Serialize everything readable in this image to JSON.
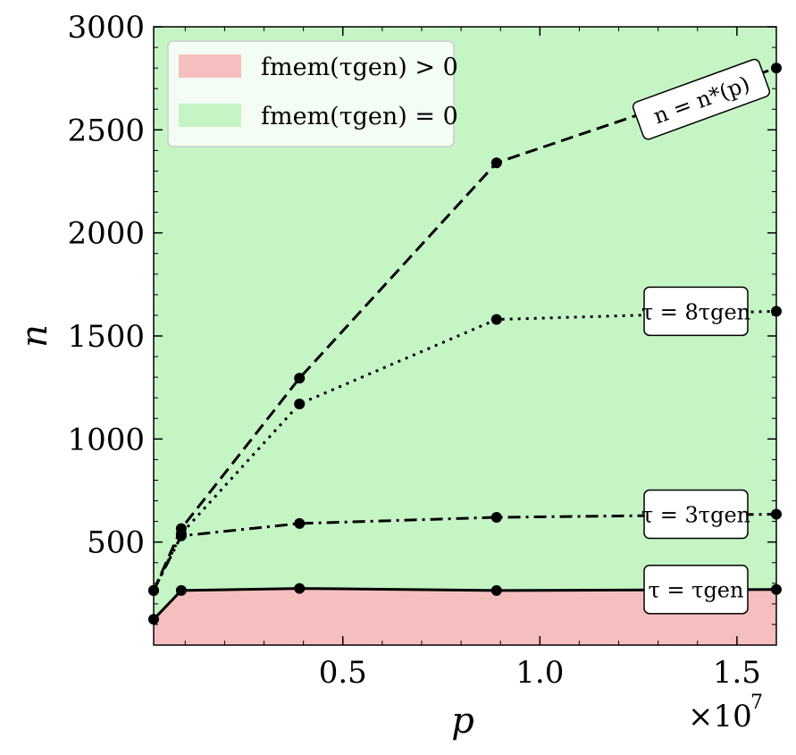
{
  "chart_data": {
    "type": "line",
    "xlabel": "p",
    "ylabel": "n",
    "x_multiplier": "×10",
    "x_multiplier_exp": "7",
    "xlim": [
      200000,
      16000000
    ],
    "ylim": [
      0,
      3000
    ],
    "xticks": [
      {
        "value": 5000000,
        "label": "0.5"
      },
      {
        "value": 10000000,
        "label": "1.0"
      },
      {
        "value": 15000000,
        "label": "1.5"
      }
    ],
    "yticks": [
      {
        "value": 500,
        "label": "500"
      },
      {
        "value": 1000,
        "label": "1000"
      },
      {
        "value": 1500,
        "label": "1500"
      },
      {
        "value": 2000,
        "label": "2000"
      },
      {
        "value": 2500,
        "label": "2500"
      },
      {
        "value": 3000,
        "label": "3000"
      }
    ],
    "x": [
      200000,
      900000,
      3900000,
      8900000,
      16000000
    ],
    "series": [
      {
        "name": "τ = τgen",
        "style": "solid",
        "values": [
          125,
          265,
          275,
          265,
          270
        ]
      },
      {
        "name": "τ = 3τgen",
        "style": "dashdot",
        "values": [
          265,
          530,
          590,
          620,
          635
        ]
      },
      {
        "name": "τ = 8τgen",
        "style": "dotted",
        "values": [
          265,
          540,
          1170,
          1580,
          1620
        ]
      },
      {
        "name": "n = n*(p)",
        "style": "dashed",
        "values": [
          265,
          565,
          1295,
          2340,
          2800
        ]
      }
    ],
    "curve_labels": [
      {
        "text": "n = n*(p)",
        "series": 3
      },
      {
        "text": "τ = 8τgen",
        "series": 2
      },
      {
        "text": "τ = 3τgen",
        "series": 1
      },
      {
        "text": "τ = τgen",
        "series": 0
      }
    ],
    "regions": {
      "mem_color": "#f5bfbf",
      "nomem_color": "#c5f5c5",
      "boundary_series": 0
    },
    "legend": {
      "placement": "top-left",
      "entries": [
        {
          "label": "fmem(τgen) > 0",
          "color": "#f5bfbf"
        },
        {
          "label": "fmem(τgen) = 0",
          "color": "#c5f5c5"
        }
      ]
    },
    "grid": false
  }
}
